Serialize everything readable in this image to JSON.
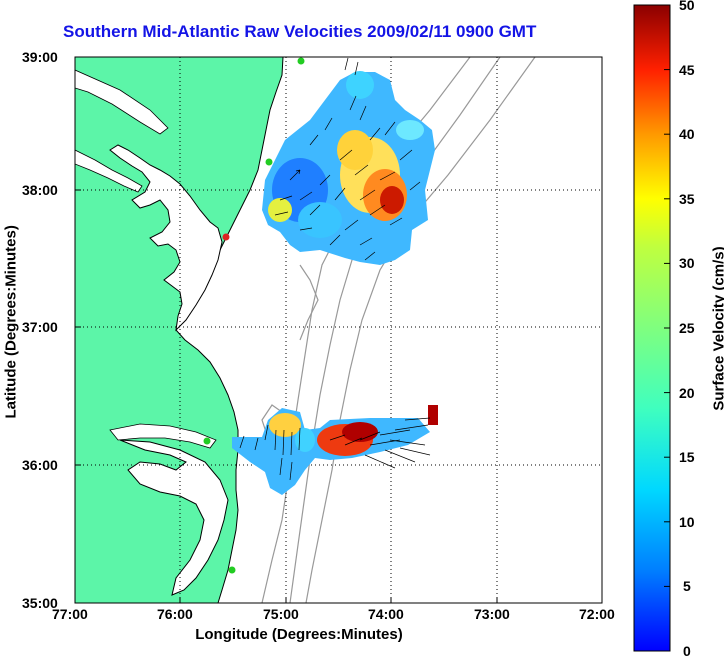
{
  "title": "Southern Mid-Atlantic Raw Velocities 2009/02/11 0900 GMT",
  "x_axis": {
    "label": "Longitude (Degrees:Minutes)",
    "ticks": [
      "77:00",
      "76:00",
      "75:00",
      "74:00",
      "73:00",
      "72:00"
    ]
  },
  "y_axis": {
    "label": "Latitude (Degrees:Minutes)",
    "ticks": [
      "39:00",
      "38:00",
      "37:00",
      "36:00",
      "35:00"
    ]
  },
  "colorbar": {
    "label": "Surface Velocity (cm/s)",
    "ticks": [
      "50",
      "45",
      "40",
      "35",
      "30",
      "25",
      "20",
      "15",
      "10",
      "5",
      "0"
    ],
    "min": 0,
    "max": 50,
    "colormap": "jet"
  },
  "colors": {
    "title": "#1414e6",
    "land": "#5cf5a8",
    "ocean": "#ffffff",
    "coast": "#000000",
    "bathymetry": "#999999",
    "grid": "#000000",
    "station_active": "#22cc22",
    "station_alert": "#dd2222"
  },
  "grid": true,
  "map_extent": {
    "lon_west": -77,
    "lon_east": -72,
    "lat_south": 35,
    "lat_north": 39
  }
}
